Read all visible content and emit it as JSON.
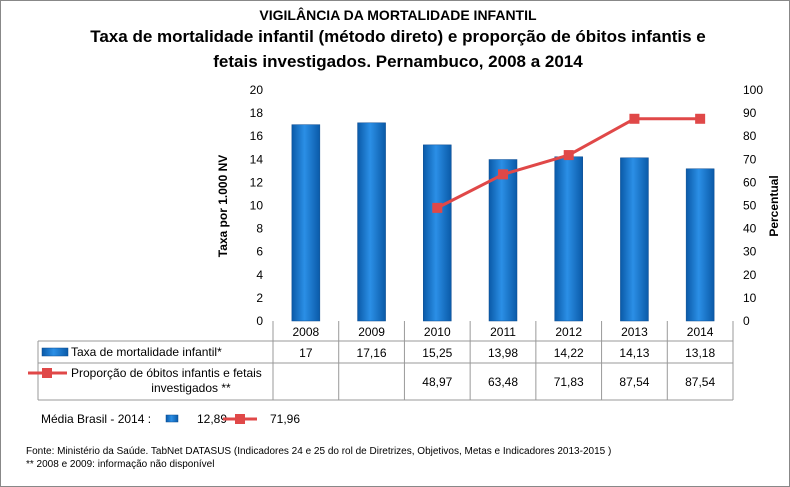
{
  "chart_data": {
    "type": "bar+line",
    "supertitle": "VIGILÂNCIA DA MORTALIDADE INFANTIL",
    "title_line1": "Taxa de mortalidade infantil (método direto) e proporção de óbitos infantis e",
    "title_line2": "fetais investigados. Pernambuco,  2008 a 2014",
    "categories": [
      "2008",
      "2009",
      "2010",
      "2011",
      "2012",
      "2013",
      "2014"
    ],
    "ylabel_left": "Taxa  por 1.000 NV",
    "ylabel_right": "Percentual",
    "ylim_left": [
      0,
      20
    ],
    "yticks_left": [
      0,
      2,
      4,
      6,
      8,
      10,
      12,
      14,
      16,
      18,
      20
    ],
    "ylim_right": [
      0,
      100
    ],
    "yticks_right": [
      0,
      10,
      20,
      30,
      40,
      50,
      60,
      70,
      80,
      90,
      100
    ],
    "grid": false,
    "series": [
      {
        "name": "Taxa de mortalidade infantil*",
        "type": "bar",
        "axis": "left",
        "color": "#1f7fd6",
        "values": [
          17,
          17.16,
          15.25,
          13.98,
          14.22,
          14.13,
          13.18
        ],
        "labels": [
          "17",
          "17,16",
          "15,25",
          "13,98",
          "14,22",
          "14,13",
          "13,18"
        ]
      },
      {
        "name": "Proporção de óbitos infantis e fetais investigados **",
        "name_line1": "Proporção de óbitos infantis e fetais",
        "name_line2": "investigados **",
        "type": "line",
        "axis": "right",
        "color": "#e04848",
        "values": [
          null,
          null,
          48.97,
          63.48,
          71.83,
          87.54,
          87.54
        ],
        "labels": [
          "",
          "",
          "48,97",
          "63,48",
          "71,83",
          "87,54",
          "87,54"
        ]
      }
    ],
    "data_table": true
  },
  "footer": {
    "media_label": "Média Brasil - 2014 :",
    "media_bar": "12,89",
    "media_line": "71,96",
    "source": "Fonte: Ministério da Saúde. TabNet DATASUS (Indicadores 24 e 25 do rol de Diretrizes, Objetivos, Metas e Indicadores 2013-2015 )",
    "note": "** 2008 e 2009: informação não disponível"
  }
}
